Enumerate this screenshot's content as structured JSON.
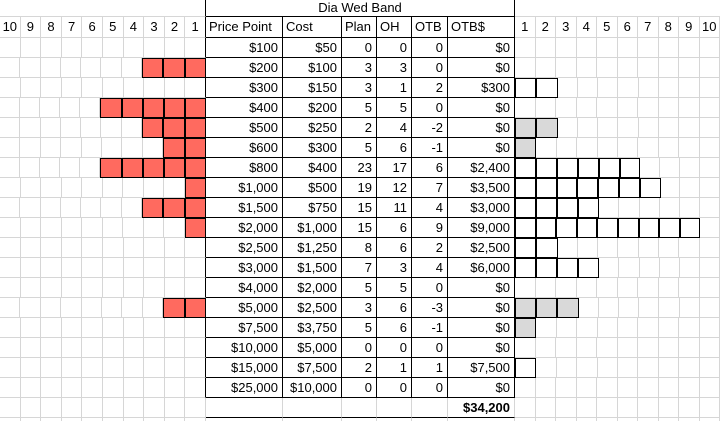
{
  "sheet_title": "Dia Wed Band",
  "colors": {
    "bar_red": "#ff6a5f",
    "otb_negative_gray": "#d9d9d9",
    "gridline": "#d6d6d6",
    "table_border": "#000000"
  },
  "left_chart": {
    "col_headers": [
      "10",
      "9",
      "8",
      "7",
      "6",
      "5",
      "4",
      "3",
      "2",
      "1"
    ],
    "values": [
      0,
      3,
      0,
      5,
      3,
      2,
      5,
      1,
      3,
      1,
      0,
      0,
      0,
      2,
      0,
      0,
      0,
      0
    ]
  },
  "table": {
    "col_headers": [
      "Price Point",
      "Cost",
      "Plan",
      "OH",
      "OTB",
      "OTB$"
    ],
    "rows": [
      [
        "$100",
        "$50",
        "0",
        "0",
        "0",
        "$0"
      ],
      [
        "$200",
        "$100",
        "3",
        "3",
        "0",
        "$0"
      ],
      [
        "$300",
        "$150",
        "3",
        "1",
        "2",
        "$300"
      ],
      [
        "$400",
        "$200",
        "5",
        "5",
        "0",
        "$0"
      ],
      [
        "$500",
        "$250",
        "2",
        "4",
        "-2",
        "$0"
      ],
      [
        "$600",
        "$300",
        "5",
        "6",
        "-1",
        "$0"
      ],
      [
        "$800",
        "$400",
        "23",
        "17",
        "6",
        "$2,400"
      ],
      [
        "$1,000",
        "$500",
        "19",
        "12",
        "7",
        "$3,500"
      ],
      [
        "$1,500",
        "$750",
        "15",
        "11",
        "4",
        "$3,000"
      ],
      [
        "$2,000",
        "$1,000",
        "15",
        "6",
        "9",
        "$9,000"
      ],
      [
        "$2,500",
        "$1,250",
        "8",
        "6",
        "2",
        "$2,500"
      ],
      [
        "$3,000",
        "$1,500",
        "7",
        "3",
        "4",
        "$6,000"
      ],
      [
        "$4,000",
        "$2,000",
        "5",
        "5",
        "0",
        "$0"
      ],
      [
        "$5,000",
        "$2,500",
        "3",
        "6",
        "-3",
        "$0"
      ],
      [
        "$7,500",
        "$3,750",
        "5",
        "6",
        "-1",
        "$0"
      ],
      [
        "$10,000",
        "$5,000",
        "0",
        "0",
        "0",
        "$0"
      ],
      [
        "$15,000",
        "$7,500",
        "2",
        "1",
        "1",
        "$7,500"
      ],
      [
        "$25,000",
        "$10,000",
        "0",
        "0",
        "0",
        "$0"
      ]
    ],
    "total_otb_dollars": "$34,200"
  },
  "right_chart": {
    "col_headers": [
      "1",
      "2",
      "3",
      "4",
      "5",
      "6",
      "7",
      "8",
      "9",
      "10"
    ],
    "values": [
      0,
      0,
      2,
      0,
      -2,
      -1,
      6,
      7,
      4,
      9,
      2,
      4,
      0,
      -3,
      -1,
      0,
      1,
      0
    ]
  }
}
